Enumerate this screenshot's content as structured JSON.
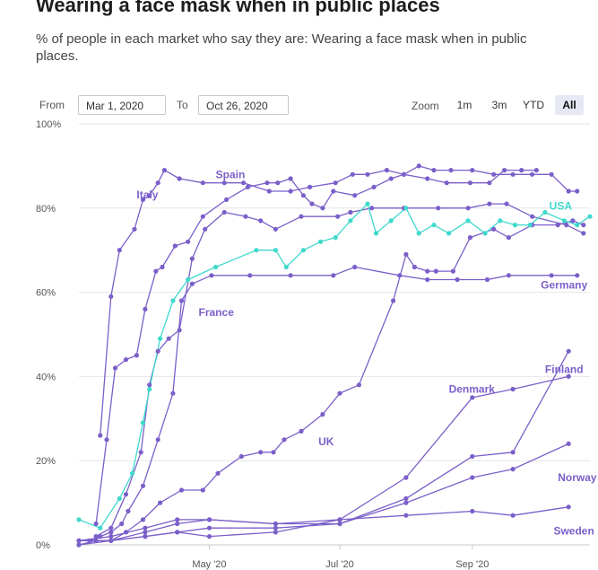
{
  "header": {
    "title": "Wearing a face mask when in public places",
    "subtitle": "% of people in each market who say they are: Wearing a face mask when in public places."
  },
  "range_selector": {
    "from_label": "From",
    "from_value": "Mar 1, 2020",
    "to_label": "To",
    "to_value": "Oct 26, 2020"
  },
  "zoom": {
    "label": "Zoom",
    "buttons": [
      "1m",
      "3m",
      "YTD",
      "All"
    ],
    "active": "All"
  },
  "colors": {
    "series": "#7b5fc9",
    "usa": "#3fd9cc",
    "grid": "#e6e6e6",
    "axis": "#c8c8c8"
  },
  "chart_data": {
    "type": "line",
    "x_domain": [
      "2020-03-01",
      "2020-10-26"
    ],
    "ylim": [
      0,
      100
    ],
    "grid": true,
    "y_ticks": [
      {
        "value": 0,
        "label": "0%"
      },
      {
        "value": 20,
        "label": "20%"
      },
      {
        "value": 40,
        "label": "40%"
      },
      {
        "value": 60,
        "label": "60%"
      },
      {
        "value": 80,
        "label": "80%"
      },
      {
        "value": 100,
        "label": "100%"
      }
    ],
    "x_ticks": [
      {
        "date": "2020-05-01",
        "label": "May '20"
      },
      {
        "date": "2020-07-01",
        "label": "Jul '20"
      },
      {
        "date": "2020-09-01",
        "label": "Sep '20"
      }
    ],
    "series": [
      {
        "name": "Italy",
        "color": "#7b5fc9",
        "label_at": {
          "date": "2020-03-28",
          "value": 82.3
        },
        "points": [
          [
            "2020-03-11",
            26
          ],
          [
            "2020-03-16",
            59
          ],
          [
            "2020-03-20",
            70
          ],
          [
            "2020-03-27",
            75
          ],
          [
            "2020-03-31",
            82
          ],
          [
            "2020-04-03",
            83
          ],
          [
            "2020-04-07",
            86
          ],
          [
            "2020-04-10",
            89
          ],
          [
            "2020-04-17",
            87
          ],
          [
            "2020-04-28",
            86
          ],
          [
            "2020-05-08",
            86
          ],
          [
            "2020-05-17",
            86
          ],
          [
            "2020-05-29",
            84
          ],
          [
            "2020-06-08",
            84
          ],
          [
            "2020-06-17",
            85
          ],
          [
            "2020-06-29",
            86
          ],
          [
            "2020-07-07",
            88
          ],
          [
            "2020-07-14",
            88
          ],
          [
            "2020-07-23",
            89
          ],
          [
            "2020-07-31",
            88
          ],
          [
            "2020-08-11",
            87
          ],
          [
            "2020-08-20",
            86
          ],
          [
            "2020-08-31",
            86
          ],
          [
            "2020-09-09",
            86
          ],
          [
            "2020-09-16",
            89
          ],
          [
            "2020-09-24",
            89
          ],
          [
            "2020-10-01",
            89
          ]
        ]
      },
      {
        "name": "Spain",
        "color": "#7b5fc9",
        "label_at": {
          "date": "2020-05-04",
          "value": 87.1
        },
        "points": [
          [
            "2020-03-09",
            5
          ],
          [
            "2020-03-14",
            25
          ],
          [
            "2020-03-18",
            42
          ],
          [
            "2020-03-23",
            44
          ],
          [
            "2020-03-28",
            45
          ],
          [
            "2020-04-01",
            56
          ],
          [
            "2020-04-06",
            65
          ],
          [
            "2020-04-09",
            66
          ],
          [
            "2020-04-15",
            71
          ],
          [
            "2020-04-21",
            72
          ],
          [
            "2020-04-28",
            78
          ],
          [
            "2020-05-09",
            82
          ],
          [
            "2020-05-19",
            85
          ],
          [
            "2020-05-28",
            86
          ],
          [
            "2020-06-02",
            86
          ],
          [
            "2020-06-08",
            87
          ],
          [
            "2020-06-14",
            83
          ],
          [
            "2020-06-18",
            81
          ],
          [
            "2020-06-23",
            80
          ],
          [
            "2020-06-28",
            84
          ],
          [
            "2020-07-08",
            83
          ],
          [
            "2020-07-17",
            85
          ],
          [
            "2020-07-25",
            87
          ],
          [
            "2020-07-31",
            88
          ],
          [
            "2020-08-07",
            90
          ],
          [
            "2020-08-14",
            89
          ],
          [
            "2020-08-22",
            89
          ],
          [
            "2020-09-01",
            89
          ],
          [
            "2020-09-11",
            88
          ],
          [
            "2020-09-20",
            88
          ],
          [
            "2020-09-29",
            88
          ],
          [
            "2020-10-08",
            88
          ],
          [
            "2020-10-16",
            84
          ],
          [
            "2020-10-20",
            84
          ]
        ]
      },
      {
        "name": "France",
        "color": "#7b5fc9",
        "label_at": {
          "date": "2020-04-26",
          "value": 54.4
        },
        "points": [
          [
            "2020-03-06",
            1
          ],
          [
            "2020-03-11",
            2
          ],
          [
            "2020-03-16",
            3
          ],
          [
            "2020-03-21",
            5
          ],
          [
            "2020-03-24",
            8
          ],
          [
            "2020-03-31",
            14
          ],
          [
            "2020-04-07",
            25
          ],
          [
            "2020-04-14",
            36
          ],
          [
            "2020-04-18",
            58
          ],
          [
            "2020-04-23",
            62
          ],
          [
            "2020-05-02",
            64
          ],
          [
            "2020-05-20",
            64
          ],
          [
            "2020-06-08",
            64
          ],
          [
            "2020-06-28",
            64
          ],
          [
            "2020-07-08",
            66
          ],
          [
            "2020-07-29",
            64
          ],
          [
            "2020-08-11",
            63
          ],
          [
            "2020-08-25",
            63
          ],
          [
            "2020-09-08",
            63
          ],
          [
            "2020-09-18",
            64
          ],
          [
            "2020-10-08",
            64
          ],
          [
            "2020-10-20",
            64
          ]
        ]
      },
      {
        "name": "Germany",
        "color": "#7b5fc9",
        "label_at": {
          "date": "2020-10-03",
          "value": 60.9
        },
        "points": [
          [
            "2020-03-09",
            2
          ],
          [
            "2020-03-16",
            4
          ],
          [
            "2020-03-23",
            12
          ],
          [
            "2020-03-30",
            22
          ],
          [
            "2020-04-03",
            38
          ],
          [
            "2020-04-07",
            46
          ],
          [
            "2020-04-12",
            49
          ],
          [
            "2020-04-17",
            51
          ],
          [
            "2020-04-23",
            68
          ],
          [
            "2020-04-29",
            75
          ],
          [
            "2020-05-08",
            79
          ],
          [
            "2020-05-18",
            78
          ],
          [
            "2020-05-25",
            77
          ],
          [
            "2020-06-01",
            75
          ],
          [
            "2020-06-13",
            78
          ],
          [
            "2020-06-30",
            78
          ],
          [
            "2020-07-06",
            79
          ],
          [
            "2020-07-16",
            80
          ],
          [
            "2020-07-31",
            80
          ],
          [
            "2020-08-16",
            80
          ],
          [
            "2020-08-30",
            80
          ],
          [
            "2020-09-09",
            81
          ],
          [
            "2020-09-17",
            81
          ],
          [
            "2020-09-29",
            78
          ],
          [
            "2020-10-15",
            76
          ],
          [
            "2020-10-23",
            74
          ]
        ]
      },
      {
        "name": "USA",
        "color": "#3fd9cc",
        "label_at": {
          "date": "2020-10-07",
          "value": 79.6
        },
        "points": [
          [
            "2020-03-01",
            6
          ],
          [
            "2020-03-11",
            4
          ],
          [
            "2020-03-20",
            11
          ],
          [
            "2020-03-26",
            17
          ],
          [
            "2020-03-31",
            29
          ],
          [
            "2020-04-03",
            37
          ],
          [
            "2020-04-08",
            49
          ],
          [
            "2020-04-14",
            58
          ],
          [
            "2020-04-21",
            63
          ],
          [
            "2020-05-04",
            66
          ],
          [
            "2020-05-23",
            70
          ],
          [
            "2020-06-01",
            70
          ],
          [
            "2020-06-06",
            66
          ],
          [
            "2020-06-14",
            70
          ],
          [
            "2020-06-22",
            72
          ],
          [
            "2020-06-29",
            73
          ],
          [
            "2020-07-06",
            77
          ],
          [
            "2020-07-14",
            81
          ],
          [
            "2020-07-18",
            74
          ],
          [
            "2020-07-25",
            77
          ],
          [
            "2020-08-01",
            80
          ],
          [
            "2020-08-07",
            74
          ],
          [
            "2020-08-14",
            76
          ],
          [
            "2020-08-21",
            74
          ],
          [
            "2020-08-30",
            77
          ],
          [
            "2020-09-07",
            74
          ],
          [
            "2020-09-14",
            77
          ],
          [
            "2020-09-21",
            76
          ],
          [
            "2020-09-28",
            76
          ],
          [
            "2020-10-05",
            79
          ],
          [
            "2020-10-14",
            77
          ],
          [
            "2020-10-20",
            76
          ],
          [
            "2020-10-26",
            78
          ]
        ]
      },
      {
        "name": "UK",
        "color": "#7b5fc9",
        "label_at": {
          "date": "2020-06-21",
          "value": 23.7
        },
        "points": [
          [
            "2020-03-01",
            0
          ],
          [
            "2020-03-09",
            1
          ],
          [
            "2020-03-16",
            1
          ],
          [
            "2020-03-23",
            3
          ],
          [
            "2020-03-31",
            6
          ],
          [
            "2020-04-08",
            10
          ],
          [
            "2020-04-18",
            13
          ],
          [
            "2020-04-28",
            13
          ],
          [
            "2020-05-05",
            17
          ],
          [
            "2020-05-16",
            21
          ],
          [
            "2020-05-25",
            22
          ],
          [
            "2020-05-31",
            22
          ],
          [
            "2020-06-05",
            25
          ],
          [
            "2020-06-13",
            27
          ],
          [
            "2020-06-23",
            31
          ],
          [
            "2020-07-01",
            36
          ],
          [
            "2020-07-10",
            38
          ],
          [
            "2020-07-26",
            58
          ],
          [
            "2020-08-01",
            69
          ],
          [
            "2020-08-05",
            66
          ],
          [
            "2020-08-11",
            65
          ],
          [
            "2020-08-15",
            65
          ],
          [
            "2020-08-23",
            65
          ],
          [
            "2020-08-31",
            73
          ],
          [
            "2020-09-11",
            75
          ],
          [
            "2020-09-18",
            73
          ],
          [
            "2020-09-29",
            76
          ],
          [
            "2020-10-11",
            76
          ],
          [
            "2020-10-18",
            77
          ],
          [
            "2020-10-23",
            76
          ]
        ]
      },
      {
        "name": "Finland",
        "color": "#7b5fc9",
        "label_at": {
          "date": "2020-10-05",
          "value": 40.8
        },
        "points": [
          [
            "2020-03-01",
            1
          ],
          [
            "2020-03-16",
            1
          ],
          [
            "2020-04-01",
            3
          ],
          [
            "2020-04-16",
            5
          ],
          [
            "2020-05-01",
            6
          ],
          [
            "2020-06-01",
            5
          ],
          [
            "2020-07-01",
            5
          ],
          [
            "2020-08-01",
            11
          ],
          [
            "2020-09-01",
            21
          ],
          [
            "2020-09-20",
            22
          ],
          [
            "2020-10-16",
            46
          ]
        ]
      },
      {
        "name": "Denmark",
        "color": "#7b5fc9",
        "label_at": {
          "date": "2020-08-21",
          "value": 36.1
        },
        "points": [
          [
            "2020-03-01",
            1
          ],
          [
            "2020-03-16",
            2
          ],
          [
            "2020-04-01",
            4
          ],
          [
            "2020-04-16",
            6
          ],
          [
            "2020-05-01",
            6
          ],
          [
            "2020-06-01",
            5
          ],
          [
            "2020-07-01",
            6
          ],
          [
            "2020-08-01",
            16
          ],
          [
            "2020-09-01",
            35
          ],
          [
            "2020-09-20",
            37
          ],
          [
            "2020-10-16",
            40
          ]
        ]
      },
      {
        "name": "Norway",
        "color": "#7b5fc9",
        "label_at": {
          "date": "2020-10-11",
          "value": 15.1
        },
        "points": [
          [
            "2020-03-01",
            0
          ],
          [
            "2020-03-16",
            1
          ],
          [
            "2020-04-01",
            2
          ],
          [
            "2020-04-16",
            3
          ],
          [
            "2020-05-01",
            4
          ],
          [
            "2020-06-01",
            4
          ],
          [
            "2020-07-01",
            5
          ],
          [
            "2020-08-01",
            10
          ],
          [
            "2020-09-01",
            16
          ],
          [
            "2020-09-20",
            18
          ],
          [
            "2020-10-16",
            24
          ]
        ]
      },
      {
        "name": "Sweden",
        "color": "#7b5fc9",
        "label_at": {
          "date": "2020-10-09",
          "value": 2.4
        },
        "points": [
          [
            "2020-03-01",
            1
          ],
          [
            "2020-03-16",
            1
          ],
          [
            "2020-04-01",
            2
          ],
          [
            "2020-04-16",
            3
          ],
          [
            "2020-05-01",
            2
          ],
          [
            "2020-06-01",
            3
          ],
          [
            "2020-07-01",
            6
          ],
          [
            "2020-08-01",
            7
          ],
          [
            "2020-09-01",
            8
          ],
          [
            "2020-09-20",
            7
          ],
          [
            "2020-10-16",
            9
          ]
        ]
      }
    ]
  }
}
